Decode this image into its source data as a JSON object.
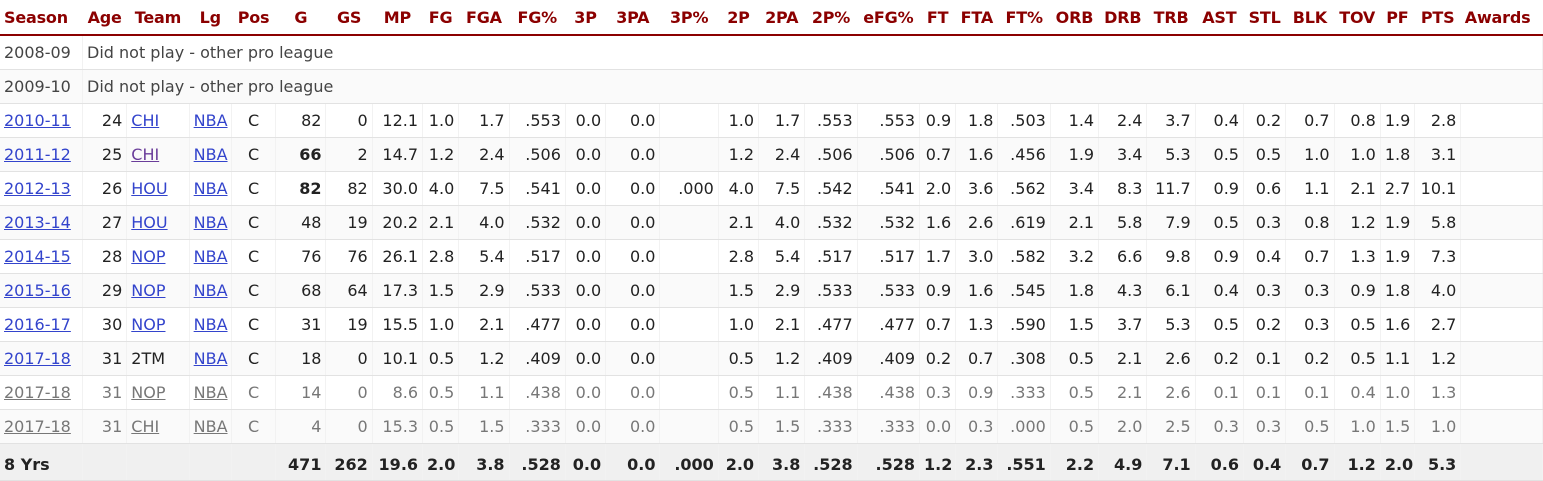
{
  "columns": [
    "Season",
    "Age",
    "Team",
    "Lg",
    "Pos",
    "G",
    "GS",
    "MP",
    "FG",
    "FGA",
    "FG%",
    "3P",
    "3PA",
    "3P%",
    "2P",
    "2PA",
    "2P%",
    "eFG%",
    "FT",
    "FTA",
    "FT%",
    "ORB",
    "DRB",
    "TRB",
    "AST",
    "STL",
    "BLK",
    "TOV",
    "PF",
    "PTS",
    "Awards"
  ],
  "notes": [
    {
      "season": "2008-09",
      "text": "Did not play - other pro league"
    },
    {
      "season": "2009-10",
      "text": "Did not play - other pro league"
    }
  ],
  "rows": [
    {
      "cells": [
        "2010-11",
        "24",
        "CHI",
        "NBA",
        "C",
        "82",
        "0",
        "12.1",
        "1.0",
        "1.7",
        ".553",
        "0.0",
        "0.0",
        "",
        "1.0",
        "1.7",
        ".553",
        ".553",
        "0.9",
        "1.8",
        ".503",
        "1.4",
        "2.4",
        "3.7",
        "0.4",
        "0.2",
        "0.7",
        "0.8",
        "1.9",
        "2.8",
        ""
      ]
    },
    {
      "cells": [
        "2011-12",
        "25",
        "CHI",
        "NBA",
        "C",
        "66",
        "2",
        "14.7",
        "1.2",
        "2.4",
        ".506",
        "0.0",
        "0.0",
        "",
        "1.2",
        "2.4",
        ".506",
        ".506",
        "0.7",
        "1.6",
        ".456",
        "1.9",
        "3.4",
        "5.3",
        "0.5",
        "0.5",
        "1.0",
        "1.0",
        "1.8",
        "3.1",
        ""
      ]
    },
    {
      "cells": [
        "2012-13",
        "26",
        "HOU",
        "NBA",
        "C",
        "82",
        "82",
        "30.0",
        "4.0",
        "7.5",
        ".541",
        "0.0",
        "0.0",
        ".000",
        "4.0",
        "7.5",
        ".542",
        ".541",
        "2.0",
        "3.6",
        ".562",
        "3.4",
        "8.3",
        "11.7",
        "0.9",
        "0.6",
        "1.1",
        "2.1",
        "2.7",
        "10.1",
        ""
      ]
    },
    {
      "cells": [
        "2013-14",
        "27",
        "HOU",
        "NBA",
        "C",
        "48",
        "19",
        "20.2",
        "2.1",
        "4.0",
        ".532",
        "0.0",
        "0.0",
        "",
        "2.1",
        "4.0",
        ".532",
        ".532",
        "1.6",
        "2.6",
        ".619",
        "2.1",
        "5.8",
        "7.9",
        "0.5",
        "0.3",
        "0.8",
        "1.2",
        "1.9",
        "5.8",
        ""
      ]
    },
    {
      "cells": [
        "2014-15",
        "28",
        "NOP",
        "NBA",
        "C",
        "76",
        "76",
        "26.1",
        "2.8",
        "5.4",
        ".517",
        "0.0",
        "0.0",
        "",
        "2.8",
        "5.4",
        ".517",
        ".517",
        "1.7",
        "3.0",
        ".582",
        "3.2",
        "6.6",
        "9.8",
        "0.9",
        "0.4",
        "0.7",
        "1.3",
        "1.9",
        "7.3",
        ""
      ]
    },
    {
      "cells": [
        "2015-16",
        "29",
        "NOP",
        "NBA",
        "C",
        "68",
        "64",
        "17.3",
        "1.5",
        "2.9",
        ".533",
        "0.0",
        "0.0",
        "",
        "1.5",
        "2.9",
        ".533",
        ".533",
        "0.9",
        "1.6",
        ".545",
        "1.8",
        "4.3",
        "6.1",
        "0.4",
        "0.3",
        "0.3",
        "0.9",
        "1.8",
        "4.0",
        ""
      ]
    },
    {
      "cells": [
        "2016-17",
        "30",
        "NOP",
        "NBA",
        "C",
        "31",
        "19",
        "15.5",
        "1.0",
        "2.1",
        ".477",
        "0.0",
        "0.0",
        "",
        "1.0",
        "2.1",
        ".477",
        ".477",
        "0.7",
        "1.3",
        ".590",
        "1.5",
        "3.7",
        "5.3",
        "0.5",
        "0.2",
        "0.3",
        "0.5",
        "1.6",
        "2.7",
        ""
      ]
    },
    {
      "cells": [
        "2017-18",
        "31",
        "2TM",
        "NBA",
        "C",
        "18",
        "0",
        "10.1",
        "0.5",
        "1.2",
        ".409",
        "0.0",
        "0.0",
        "",
        "0.5",
        "1.2",
        ".409",
        ".409",
        "0.2",
        "0.7",
        ".308",
        "0.5",
        "2.1",
        "2.6",
        "0.2",
        "0.1",
        "0.2",
        "0.5",
        "1.1",
        "1.2",
        ""
      ]
    },
    {
      "cells": [
        "2017-18",
        "31",
        "NOP",
        "NBA",
        "C",
        "14",
        "0",
        "8.6",
        "0.5",
        "1.1",
        ".438",
        "0.0",
        "0.0",
        "",
        "0.5",
        "1.1",
        ".438",
        ".438",
        "0.3",
        "0.9",
        ".333",
        "0.5",
        "2.1",
        "2.6",
        "0.1",
        "0.1",
        "0.1",
        "0.4",
        "1.0",
        "1.3",
        ""
      ]
    },
    {
      "cells": [
        "2017-18",
        "31",
        "CHI",
        "NBA",
        "C",
        "4",
        "0",
        "15.3",
        "0.5",
        "1.5",
        ".333",
        "0.0",
        "0.0",
        "",
        "0.5",
        "1.5",
        ".333",
        ".333",
        "0.0",
        "0.3",
        ".000",
        "0.5",
        "2.0",
        "2.5",
        "0.3",
        "0.3",
        "0.5",
        "1.0",
        "1.5",
        "1.0",
        ""
      ]
    }
  ],
  "totals": {
    "cells": [
      "8 Yrs",
      "",
      "",
      "",
      "",
      "471",
      "262",
      "19.6",
      "2.0",
      "3.8",
      ".528",
      "0.0",
      "0.0",
      ".000",
      "2.0",
      "3.8",
      ".528",
      ".528",
      "1.2",
      "2.3",
      ".551",
      "2.2",
      "4.9",
      "7.1",
      "0.6",
      "0.4",
      "0.7",
      "1.2",
      "2.0",
      "5.3",
      ""
    ]
  },
  "colors": {
    "header_text": "#8b0000",
    "link": "#3344cc",
    "visited_link": "#6a3d9a",
    "sub_row_text": "#777777"
  }
}
